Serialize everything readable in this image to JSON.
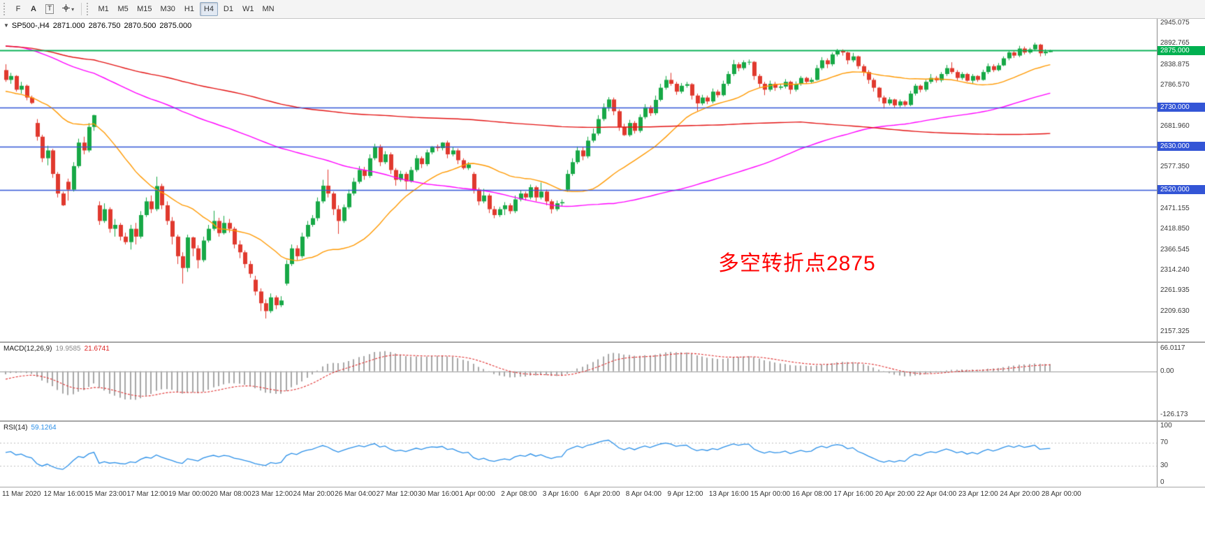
{
  "toolbar": {
    "left_buttons": [
      {
        "name": "file-tab-button",
        "label": "F"
      },
      {
        "name": "annotate-a-button",
        "label": "A"
      },
      {
        "name": "text-tool-button",
        "label": "T"
      }
    ],
    "crosshair_dropdown_arrow": "▾",
    "timeframes": [
      "M1",
      "M5",
      "M15",
      "M30",
      "H1",
      "H4",
      "D1",
      "W1",
      "MN"
    ],
    "active_timeframe": "H4"
  },
  "panes": {
    "price": {
      "info": {
        "dropdown_arrow": "▼",
        "symbol": "SP500-,H4",
        "open": "2871.000",
        "high": "2876.750",
        "low": "2870.500",
        "close": "2875.000"
      },
      "annotation": {
        "text": "多空转折点2875",
        "color": "#ff0000"
      }
    },
    "macd": {
      "label": "MACD(12,26,9)",
      "main_value": "19.9585",
      "signal_value": "21.6741",
      "axis_labels": [
        {
          "text": "66.0117",
          "value": 66.0117
        },
        {
          "text": "0.00",
          "value": 0
        },
        {
          "text": "-126.173",
          "value": -126.173
        }
      ]
    },
    "rsi": {
      "label": "RSI(14)",
      "value": "59.1264",
      "axis_labels": [
        {
          "text": "100",
          "value": 100
        },
        {
          "text": "70",
          "value": 70
        },
        {
          "text": "30",
          "value": 30
        },
        {
          "text": "0",
          "value": 0
        }
      ],
      "levels": [
        70,
        30
      ]
    }
  },
  "chart_data": {
    "type": "candlestick",
    "symbol": "SP500",
    "timeframe": "H4",
    "title": "SP500-,H4",
    "price_axis": {
      "min": 2157.325,
      "max": 2945.075,
      "ticks": [
        "2945.075",
        "2892.765",
        "2838.875",
        "2786.570",
        "2681.960",
        "2577.350",
        "2471.155",
        "2418.850",
        "2366.545",
        "2314.240",
        "2261.935",
        "2209.630",
        "2157.325"
      ]
    },
    "hlines": [
      {
        "price": 2875.0,
        "label": "2875.000",
        "color": "#00b050"
      },
      {
        "price": 2730.0,
        "label": "2730.000",
        "color": "#3355d6"
      },
      {
        "price": 2630.0,
        "label": "2630.000",
        "color": "#3355d6"
      },
      {
        "price": 2520.0,
        "label": "2520.000",
        "color": "#3355d6"
      }
    ],
    "time_labels": [
      "11 Mar 2020",
      "12 Mar 16:00",
      "15 Mar 23:00",
      "17 Mar 12:00",
      "19 Mar 00:00",
      "20 Mar 08:00",
      "23 Mar 12:00",
      "24 Mar 20:00",
      "26 Mar 04:00",
      "27 Mar 12:00",
      "30 Mar 16:00",
      "1 Apr 00:00",
      "2 Apr 08:00",
      "3 Apr 16:00",
      "6 Apr 20:00",
      "8 Apr 04:00",
      "9 Apr 12:00",
      "13 Apr 16:00",
      "15 Apr 00:00",
      "16 Apr 08:00",
      "17 Apr 16:00",
      "20 Apr 20:00",
      "22 Apr 04:00",
      "23 Apr 12:00",
      "24 Apr 20:00",
      "28 Apr 00:00"
    ],
    "ohlc": [
      [
        2825,
        2840,
        2795,
        2800
      ],
      [
        2800,
        2818,
        2790,
        2810
      ],
      [
        2810,
        2812,
        2770,
        2775
      ],
      [
        2775,
        2795,
        2765,
        2785
      ],
      [
        2785,
        2788,
        2748,
        2755
      ],
      [
        2755,
        2760,
        2738,
        2741
      ],
      [
        2690,
        2700,
        2645,
        2655
      ],
      [
        2655,
        2660,
        2590,
        2600
      ],
      [
        2600,
        2632,
        2582,
        2620
      ],
      [
        2620,
        2624,
        2550,
        2560
      ],
      [
        2560,
        2565,
        2500,
        2510
      ],
      [
        2510,
        2515,
        2478,
        2480
      ],
      [
        2540,
        2548,
        2492,
        2520
      ],
      [
        2520,
        2590,
        2515,
        2580
      ],
      [
        2580,
        2650,
        2575,
        2640
      ],
      [
        2640,
        2655,
        2610,
        2620
      ],
      [
        2620,
        2690,
        2615,
        2680
      ],
      [
        2680,
        2711,
        2670,
        2710
      ],
      [
        2480,
        2490,
        2430,
        2440
      ],
      [
        2440,
        2485,
        2435,
        2470
      ],
      [
        2470,
        2475,
        2410,
        2420
      ],
      [
        2420,
        2445,
        2400,
        2430
      ],
      [
        2430,
        2435,
        2390,
        2400
      ],
      [
        2400,
        2410,
        2380,
        2386
      ],
      [
        2386,
        2430,
        2367,
        2420
      ],
      [
        2420,
        2435,
        2380,
        2400
      ],
      [
        2400,
        2465,
        2395,
        2455
      ],
      [
        2455,
        2500,
        2450,
        2490
      ],
      [
        2490,
        2505,
        2460,
        2470
      ],
      [
        2470,
        2553,
        2465,
        2529
      ],
      [
        2529,
        2535,
        2470,
        2480
      ],
      [
        2480,
        2490,
        2430,
        2440
      ],
      [
        2440,
        2450,
        2380,
        2400
      ],
      [
        2400,
        2405,
        2330,
        2350
      ],
      [
        2350,
        2360,
        2280,
        2320
      ],
      [
        2320,
        2405,
        2310,
        2398
      ],
      [
        2398,
        2400,
        2350,
        2370
      ],
      [
        2370,
        2378,
        2319,
        2340
      ],
      [
        2340,
        2400,
        2335,
        2390
      ],
      [
        2390,
        2430,
        2385,
        2420
      ],
      [
        2420,
        2466,
        2415,
        2440
      ],
      [
        2440,
        2448,
        2400,
        2409
      ],
      [
        2409,
        2453,
        2405,
        2435
      ],
      [
        2435,
        2445,
        2410,
        2420
      ],
      [
        2420,
        2425,
        2370,
        2380
      ],
      [
        2380,
        2390,
        2345,
        2360
      ],
      [
        2360,
        2365,
        2320,
        2330
      ],
      [
        2330,
        2338,
        2295,
        2305
      ],
      [
        2290,
        2300,
        2250,
        2260
      ],
      [
        2260,
        2268,
        2210,
        2230
      ],
      [
        2230,
        2240,
        2191,
        2210
      ],
      [
        2210,
        2255,
        2205,
        2245
      ],
      [
        2245,
        2250,
        2215,
        2225
      ],
      [
        2225,
        2248,
        2220,
        2237
      ],
      [
        2280,
        2340,
        2275,
        2330
      ],
      [
        2330,
        2380,
        2325,
        2370
      ],
      [
        2370,
        2378,
        2340,
        2350
      ],
      [
        2350,
        2410,
        2345,
        2400
      ],
      [
        2400,
        2440,
        2395,
        2430
      ],
      [
        2430,
        2455,
        2425,
        2447
      ],
      [
        2447,
        2500,
        2440,
        2490
      ],
      [
        2490,
        2545,
        2485,
        2530
      ],
      [
        2530,
        2571,
        2500,
        2510
      ],
      [
        2510,
        2515,
        2455,
        2470
      ],
      [
        2470,
        2480,
        2407,
        2440
      ],
      [
        2440,
        2482,
        2435,
        2475
      ],
      [
        2475,
        2520,
        2470,
        2510
      ],
      [
        2510,
        2550,
        2505,
        2540
      ],
      [
        2540,
        2580,
        2535,
        2570
      ],
      [
        2570,
        2578,
        2545,
        2555
      ],
      [
        2555,
        2610,
        2550,
        2600
      ],
      [
        2600,
        2637,
        2595,
        2630
      ],
      [
        2630,
        2635,
        2580,
        2590
      ],
      [
        2590,
        2618,
        2585,
        2610
      ],
      [
        2610,
        2615,
        2560,
        2570
      ],
      [
        2570,
        2575,
        2530,
        2545
      ],
      [
        2545,
        2568,
        2540,
        2560
      ],
      [
        2560,
        2565,
        2520,
        2541
      ],
      [
        2541,
        2578,
        2538,
        2570
      ],
      [
        2570,
        2608,
        2565,
        2600
      ],
      [
        2600,
        2605,
        2575,
        2585
      ],
      [
        2585,
        2622,
        2580,
        2615
      ],
      [
        2615,
        2631,
        2610,
        2630
      ],
      [
        2630,
        2635,
        2618,
        2626
      ],
      [
        2626,
        2641,
        2620,
        2640
      ],
      [
        2640,
        2645,
        2600,
        2610
      ],
      [
        2610,
        2628,
        2605,
        2620
      ],
      [
        2620,
        2625,
        2585,
        2595
      ],
      [
        2595,
        2600,
        2571,
        2575
      ],
      [
        2575,
        2590,
        2570,
        2584
      ],
      [
        2560,
        2565,
        2510,
        2520
      ],
      [
        2520,
        2525,
        2480,
        2490
      ],
      [
        2490,
        2522,
        2485,
        2505
      ],
      [
        2505,
        2510,
        2460,
        2470
      ],
      [
        2470,
        2478,
        2447,
        2455
      ],
      [
        2455,
        2476,
        2450,
        2470
      ],
      [
        2470,
        2488,
        2455,
        2480
      ],
      [
        2480,
        2485,
        2458,
        2465
      ],
      [
        2465,
        2505,
        2460,
        2495
      ],
      [
        2495,
        2518,
        2490,
        2510
      ],
      [
        2510,
        2515,
        2492,
        2500
      ],
      [
        2500,
        2533,
        2495,
        2526
      ],
      [
        2526,
        2530,
        2490,
        2500
      ],
      [
        2500,
        2538,
        2495,
        2515
      ],
      [
        2515,
        2520,
        2480,
        2490
      ],
      [
        2490,
        2495,
        2459,
        2470
      ],
      [
        2470,
        2492,
        2465,
        2485
      ],
      [
        2485,
        2495,
        2478,
        2488
      ],
      [
        2520,
        2570,
        2515,
        2560
      ],
      [
        2560,
        2600,
        2555,
        2590
      ],
      [
        2590,
        2630,
        2585,
        2620
      ],
      [
        2620,
        2628,
        2595,
        2605
      ],
      [
        2605,
        2655,
        2600,
        2645
      ],
      [
        2645,
        2676,
        2640,
        2663
      ],
      [
        2663,
        2710,
        2658,
        2700
      ],
      [
        2700,
        2740,
        2695,
        2730
      ],
      [
        2730,
        2756,
        2720,
        2750
      ],
      [
        2750,
        2755,
        2710,
        2720
      ],
      [
        2720,
        2725,
        2670,
        2680
      ],
      [
        2680,
        2688,
        2657,
        2659
      ],
      [
        2659,
        2698,
        2655,
        2690
      ],
      [
        2690,
        2695,
        2663,
        2670
      ],
      [
        2670,
        2712,
        2665,
        2705
      ],
      [
        2705,
        2738,
        2700,
        2730
      ],
      [
        2730,
        2735,
        2708,
        2715
      ],
      [
        2715,
        2760,
        2710,
        2749
      ],
      [
        2749,
        2790,
        2745,
        2780
      ],
      [
        2780,
        2810,
        2775,
        2800
      ],
      [
        2800,
        2818,
        2785,
        2790
      ],
      [
        2790,
        2795,
        2762,
        2770
      ],
      [
        2770,
        2792,
        2765,
        2785
      ],
      [
        2785,
        2795,
        2780,
        2789
      ],
      [
        2789,
        2792,
        2750,
        2760
      ],
      [
        2760,
        2765,
        2721,
        2740
      ],
      [
        2740,
        2762,
        2735,
        2755
      ],
      [
        2755,
        2760,
        2738,
        2745
      ],
      [
        2745,
        2778,
        2740,
        2770
      ],
      [
        2770,
        2775,
        2755,
        2761
      ],
      [
        2761,
        2798,
        2758,
        2790
      ],
      [
        2790,
        2822,
        2785,
        2815
      ],
      [
        2815,
        2851,
        2810,
        2840
      ],
      [
        2840,
        2845,
        2822,
        2830
      ],
      [
        2830,
        2850,
        2825,
        2845
      ],
      [
        2845,
        2852,
        2838,
        2846
      ],
      [
        2846,
        2848,
        2800,
        2810
      ],
      [
        2810,
        2815,
        2780,
        2790
      ],
      [
        2790,
        2795,
        2761,
        2775
      ],
      [
        2775,
        2798,
        2770,
        2790
      ],
      [
        2790,
        2795,
        2772,
        2780
      ],
      [
        2780,
        2790,
        2775,
        2783
      ],
      [
        2783,
        2802,
        2778,
        2795
      ],
      [
        2795,
        2798,
        2764,
        2775
      ],
      [
        2775,
        2796,
        2770,
        2790
      ],
      [
        2790,
        2810,
        2785,
        2805
      ],
      [
        2805,
        2808,
        2790,
        2795
      ],
      [
        2795,
        2806,
        2792,
        2800
      ],
      [
        2800,
        2838,
        2798,
        2830
      ],
      [
        2830,
        2858,
        2825,
        2850
      ],
      [
        2850,
        2855,
        2830,
        2840
      ],
      [
        2840,
        2870,
        2835,
        2865
      ],
      [
        2865,
        2879,
        2860,
        2875
      ],
      [
        2875,
        2878,
        2862,
        2870
      ],
      [
        2870,
        2872,
        2840,
        2850
      ],
      [
        2850,
        2869,
        2845,
        2860
      ],
      [
        2860,
        2862,
        2828,
        2835
      ],
      [
        2835,
        2840,
        2810,
        2820
      ],
      [
        2820,
        2825,
        2790,
        2800
      ],
      [
        2800,
        2805,
        2770,
        2780
      ],
      [
        2780,
        2782,
        2745,
        2755
      ],
      [
        2755,
        2760,
        2727,
        2740
      ],
      [
        2740,
        2756,
        2735,
        2750
      ],
      [
        2750,
        2752,
        2728,
        2735
      ],
      [
        2735,
        2750,
        2730,
        2745
      ],
      [
        2745,
        2748,
        2732,
        2736
      ],
      [
        2736,
        2772,
        2733,
        2765
      ],
      [
        2765,
        2790,
        2760,
        2785
      ],
      [
        2785,
        2788,
        2768,
        2775
      ],
      [
        2775,
        2800,
        2770,
        2795
      ],
      [
        2795,
        2815,
        2790,
        2805
      ],
      [
        2805,
        2810,
        2793,
        2799
      ],
      [
        2799,
        2820,
        2794,
        2815
      ],
      [
        2815,
        2838,
        2810,
        2830
      ],
      [
        2830,
        2845,
        2815,
        2820
      ],
      [
        2820,
        2825,
        2798,
        2805
      ],
      [
        2805,
        2820,
        2800,
        2815
      ],
      [
        2815,
        2818,
        2795,
        2798
      ],
      [
        2798,
        2815,
        2791,
        2810
      ],
      [
        2810,
        2812,
        2795,
        2800
      ],
      [
        2800,
        2826,
        2798,
        2820
      ],
      [
        2820,
        2842,
        2815,
        2835
      ],
      [
        2835,
        2840,
        2820,
        2825
      ],
      [
        2825,
        2843,
        2822,
        2837
      ],
      [
        2837,
        2860,
        2835,
        2855
      ],
      [
        2855,
        2875,
        2850,
        2870
      ],
      [
        2870,
        2874,
        2856,
        2862
      ],
      [
        2862,
        2887,
        2858,
        2880
      ],
      [
        2880,
        2885,
        2865,
        2870
      ],
      [
        2870,
        2882,
        2866,
        2878
      ],
      [
        2878,
        2895,
        2875,
        2890
      ],
      [
        2890,
        2892,
        2860,
        2868
      ],
      [
        2868,
        2878,
        2862,
        2872
      ],
      [
        2871,
        2876.75,
        2870.5,
        2875
      ]
    ],
    "prehistory_closes": [
      3090,
      3095,
      3100,
      3105,
      3110,
      3108,
      3104,
      3100,
      3096,
      3092,
      3088,
      3085,
      3080,
      3072,
      3065,
      3058,
      3052,
      3045,
      3040,
      3032,
      3024,
      3016,
      3020,
      3028,
      2980,
      2960,
      2945,
      2950,
      2938,
      2945,
      2930,
      2912,
      2895,
      2900,
      2885,
      2870,
      2880,
      2895,
      2875,
      2862,
      2878,
      2860,
      2830,
      2805,
      2780,
      2760,
      2740,
      2756,
      2720,
      2695,
      2675,
      2715,
      2740,
      2750,
      2775,
      2800,
      2830,
      2855,
      2880,
      2890,
      2900,
      2882,
      2840,
      2808,
      2825,
      2818,
      2850,
      2878,
      2905,
      2925,
      2940,
      2935,
      2900,
      2872,
      2852,
      2835,
      2848,
      2838,
      2800,
      2772,
      2752,
      2780,
      2795,
      2790,
      2740,
      2700,
      2670,
      2655,
      2668,
      2660,
      2710,
      2750,
      2788,
      2815,
      2800,
      2812
    ],
    "moving_averages": [
      {
        "period": 24,
        "color": "#ff9900"
      },
      {
        "period": 100,
        "color": "#ff00ff"
      },
      {
        "period": 250,
        "color": "#e31212"
      }
    ],
    "macd_params": {
      "fast": 12,
      "slow": 26,
      "signal": 9
    },
    "rsi_period": 14,
    "colors": {
      "up": "#17a846",
      "down": "#e0392e",
      "histogram": "#a6a6a6",
      "macd_signal": "#e03030",
      "rsi_line": "#2a8fe8",
      "grid": "#c8c8c8"
    }
  }
}
